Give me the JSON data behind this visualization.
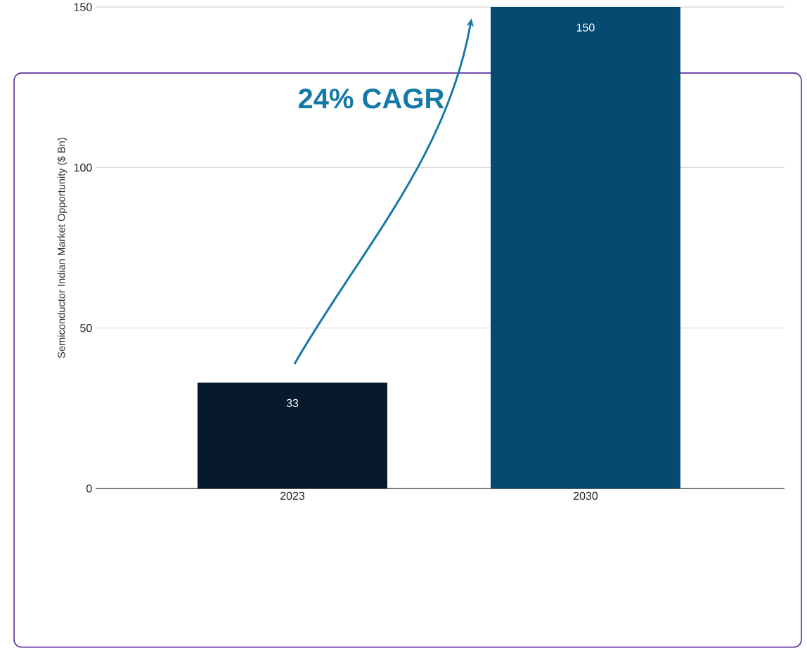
{
  "chart_data": {
    "type": "bar",
    "ylabel": "Semiconductor Indian Market Opportunity ($ Bn)",
    "categories": [
      "2023",
      "2030"
    ],
    "values": [
      33,
      150
    ],
    "colors": [
      "#061a2b",
      "#054a70"
    ],
    "ylim": [
      0,
      150
    ],
    "yticks": [
      0,
      50,
      100,
      150
    ],
    "grid": "y",
    "data_labels": true,
    "annotations": [
      "24% CAGR"
    ]
  }
}
